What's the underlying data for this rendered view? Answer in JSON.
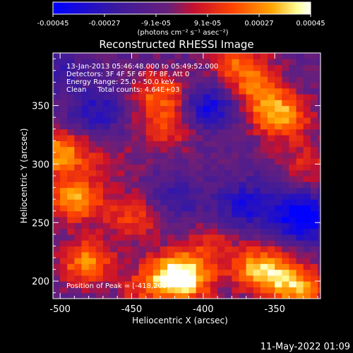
{
  "chart_data": {
    "type": "heatmap",
    "title": "Reconstructed RHESSI Image",
    "xlabel": "Heliocentric X (arcsec)",
    "ylabel": "Heliocentric Y (arcsec)",
    "xlim": [
      -505,
      -318
    ],
    "ylim": [
      185,
      395
    ],
    "xticks": [
      "-500",
      "-450",
      "-400",
      "-350"
    ],
    "yticks": [
      "200",
      "250",
      "300",
      "350"
    ],
    "grid": false,
    "colorbar": {
      "ticks": [
        "-0.00045",
        "-0.00027",
        "-9.1e-05",
        "9.1e-05",
        "0.00027",
        "0.00045"
      ],
      "unit_label": "(photons cm⁻² s⁻¹ asec⁻²)",
      "range": [
        -0.00045,
        0.00045
      ],
      "colors": [
        "#0000ff",
        "#3b1a9e",
        "#6a1f7a",
        "#c8102e",
        "#ff4500",
        "#ffa500",
        "#ffff99",
        "#ffffff"
      ]
    },
    "annotations": [
      "13-Jan-2013 05:46:48.000 to 05:49:52.000",
      "Detectors: 3F 4F 5F 6F 7F 8F, Att 0",
      "Energy Range: 25.0 - 50.0 keV",
      "Clean     Total counts: 4.64E+03"
    ],
    "peak_label": "Position of Peak = [-418,202]",
    "bright_regions": [
      {
        "x": -490,
        "y": 270,
        "value": 0.00038
      },
      {
        "x": -480,
        "y": 215,
        "value": 0.0004
      },
      {
        "x": -448,
        "y": 255,
        "value": 0.00025
      },
      {
        "x": -420,
        "y": 205,
        "value": 0.00045
      },
      {
        "x": -395,
        "y": 230,
        "value": 0.00018
      },
      {
        "x": -360,
        "y": 210,
        "value": 0.00042
      },
      {
        "x": -335,
        "y": 195,
        "value": 0.0004
      },
      {
        "x": -345,
        "y": 340,
        "value": 0.00036
      },
      {
        "x": -360,
        "y": 360,
        "value": 0.00028
      },
      {
        "x": -375,
        "y": 385,
        "value": 0.0003
      },
      {
        "x": -430,
        "y": 360,
        "value": 0.0003
      },
      {
        "x": -425,
        "y": 330,
        "value": 0.0002
      },
      {
        "x": -500,
        "y": 310,
        "value": 0.00038
      },
      {
        "x": -465,
        "y": 300,
        "value": 0.00012
      },
      {
        "x": -410,
        "y": 200,
        "value": 0.00022
      },
      {
        "x": -450,
        "y": 195,
        "value": 0.0003
      },
      {
        "x": -325,
        "y": 300,
        "value": 0.00018
      }
    ],
    "dim_regions": [
      {
        "x": -330,
        "y": 255,
        "value": -0.00042
      },
      {
        "x": -395,
        "y": 350,
        "value": -0.0003
      },
      {
        "x": -370,
        "y": 265,
        "value": -0.00025
      },
      {
        "x": -475,
        "y": 345,
        "value": -0.0002
      },
      {
        "x": -460,
        "y": 200,
        "value": -0.00022
      },
      {
        "x": -420,
        "y": 270,
        "value": -0.00015
      },
      {
        "x": -500,
        "y": 380,
        "value": -0.00012
      }
    ]
  },
  "footer": {
    "date_stamp": "11-May-2022 01:09"
  }
}
